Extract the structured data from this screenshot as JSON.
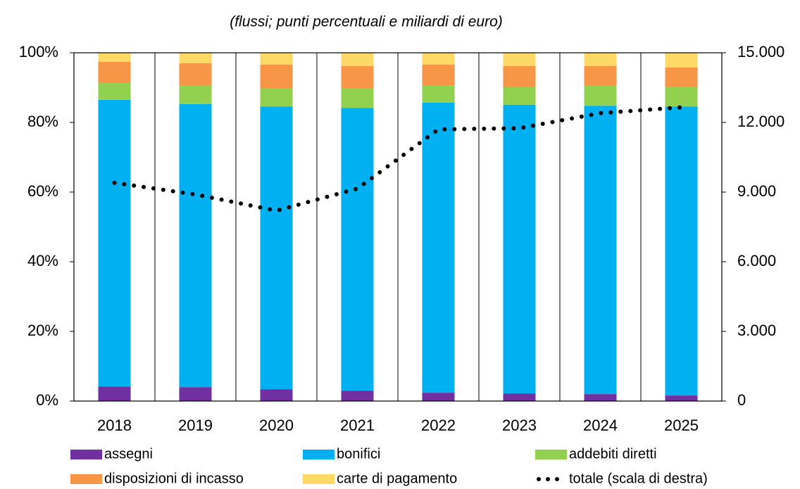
{
  "chart_data": {
    "type": "bar",
    "stacked": true,
    "subtitle": "(flussi; punti percentuali e miliardi di euro)",
    "categories": [
      "2018",
      "2019",
      "2020",
      "2021",
      "2022",
      "2023",
      "2024",
      "2025"
    ],
    "series": [
      {
        "name": "assegni",
        "color": "#7030a0",
        "values": [
          4.2,
          4.0,
          3.4,
          3.0,
          2.4,
          2.2,
          2.0,
          1.6
        ]
      },
      {
        "name": "bonifici",
        "color": "#00b0f0",
        "values": [
          82.3,
          81.3,
          81.2,
          81.2,
          83.3,
          82.9,
          82.8,
          83.0
        ]
      },
      {
        "name": "addebiti diretti",
        "color": "#92d050",
        "values": [
          4.8,
          5.2,
          5.3,
          5.7,
          5.0,
          5.0,
          5.7,
          5.7
        ]
      },
      {
        "name": "disposizioni di incasso",
        "color": "#f79646",
        "values": [
          6.1,
          6.5,
          6.7,
          6.3,
          5.9,
          6.1,
          5.7,
          5.5
        ]
      },
      {
        "name": "carte di pagamento",
        "color": "#ffd966",
        "values": [
          2.6,
          3.0,
          3.4,
          3.8,
          3.4,
          3.8,
          3.8,
          4.2
        ]
      },
      {
        "name": "totale (scala di destra)",
        "type": "line",
        "axis": "y2",
        "color": "#000000",
        "values": [
          9400,
          8900,
          8200,
          9150,
          11700,
          11750,
          12400,
          12650
        ]
      }
    ],
    "ylim": [
      0,
      100
    ],
    "yticks": [
      {
        "value": 0,
        "label": "0%"
      },
      {
        "value": 20,
        "label": "20%"
      },
      {
        "value": 40,
        "label": "40%"
      },
      {
        "value": 60,
        "label": "60%"
      },
      {
        "value": 80,
        "label": "80%"
      },
      {
        "value": 100,
        "label": "100%"
      }
    ],
    "y2lim": [
      0,
      15000
    ],
    "y2ticks": [
      0,
      {
        "value": 3000,
        "label": "3.000"
      },
      {
        "value": 6000,
        "label": "6.000"
      },
      {
        "value": 9000,
        "label": "9.000"
      },
      {
        "value": 12000,
        "label": "12.000"
      },
      {
        "value": 15000,
        "label": "15.000"
      }
    ],
    "grid": false,
    "legend": "bottom"
  }
}
